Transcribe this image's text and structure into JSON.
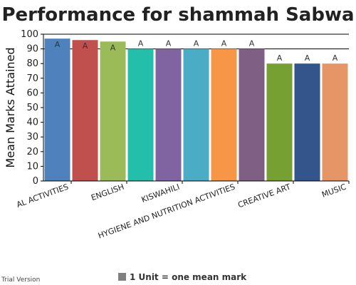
{
  "chart_data": {
    "type": "bar",
    "title": "Performance for shammah Sabwa",
    "ylabel": "Mean Marks Attained",
    "xlabel": "",
    "ylim": [
      0,
      100
    ],
    "yticks": [
      0,
      10,
      20,
      30,
      40,
      50,
      60,
      70,
      80,
      90,
      100
    ],
    "grid_lines_at": [
      90,
      100
    ],
    "categories": [
      "AL ACTIVITIES",
      "ENGLISH",
      "KISWAHILI",
      "HYGIENE AND NUTRITION ACTIVITIES",
      "CREATIVE ART",
      "MUSIC"
    ],
    "axis_category_labels": [
      {
        "text": "AL ACTIVITIES",
        "after_bar": 0
      },
      {
        "text": "ENGLISH",
        "after_bar": 2
      },
      {
        "text": "KISWAHILI",
        "after_bar": 4
      },
      {
        "text": "HYGIENE AND NUTRITION ACTIVITIES",
        "after_bar": 6
      },
      {
        "text": "CREATIVE ART",
        "after_bar": 8
      },
      {
        "text": "MUSIC",
        "after_bar": 10
      }
    ],
    "bars": [
      {
        "value": 97,
        "label": "A",
        "color": "#4f81bd"
      },
      {
        "value": 96,
        "label": "A",
        "color": "#c0504d"
      },
      {
        "value": 95,
        "label": "A",
        "color": "#9bbb59"
      },
      {
        "value": 90,
        "label": "A",
        "color": "#23bfaa"
      },
      {
        "value": 90,
        "label": "A",
        "color": "#8064a2"
      },
      {
        "value": 90,
        "label": "A",
        "color": "#4aacc5"
      },
      {
        "value": 90,
        "label": "A",
        "color": "#f79646"
      },
      {
        "value": 90,
        "label": "A",
        "color": "#7f6084"
      },
      {
        "value": 80,
        "label": "A",
        "color": "#77a033"
      },
      {
        "value": 80,
        "label": "A",
        "color": "#33558b"
      },
      {
        "value": 80,
        "label": "A",
        "color": "#e59566"
      }
    ],
    "legend": {
      "text": "1 Unit = one mean mark",
      "color": "#808080",
      "position": "bottom-center"
    },
    "watermark": "Trial Version"
  }
}
